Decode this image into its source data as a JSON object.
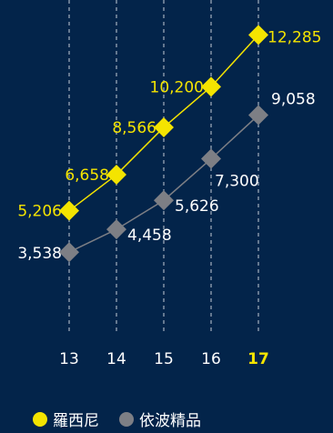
{
  "chart_data": {
    "type": "line",
    "x": [
      "13",
      "14",
      "15",
      "16",
      "17"
    ],
    "highlight_x": "17",
    "ylim": [
      3000,
      13000
    ],
    "grid": "vertical dashed",
    "legend_placement": "bottom",
    "series": [
      {
        "name": "羅西尼",
        "values": [
          5206,
          6658,
          8566,
          10200,
          12285
        ],
        "labels": [
          "5,206",
          "6,658",
          "8,566",
          "10,200",
          "12,285"
        ],
        "color": "#f4e400"
      },
      {
        "name": "依波精品",
        "values": [
          3538,
          4458,
          5626,
          7300,
          9058
        ],
        "labels": [
          "3,538",
          "4,458",
          "5,626",
          "7,300",
          "9,058"
        ],
        "color": "#7d7f85"
      }
    ]
  },
  "colors": {
    "background": "#03244a",
    "axis_text": "#ffffff",
    "highlight_tick": "#f4e400",
    "grid": "#e6e9ef"
  }
}
